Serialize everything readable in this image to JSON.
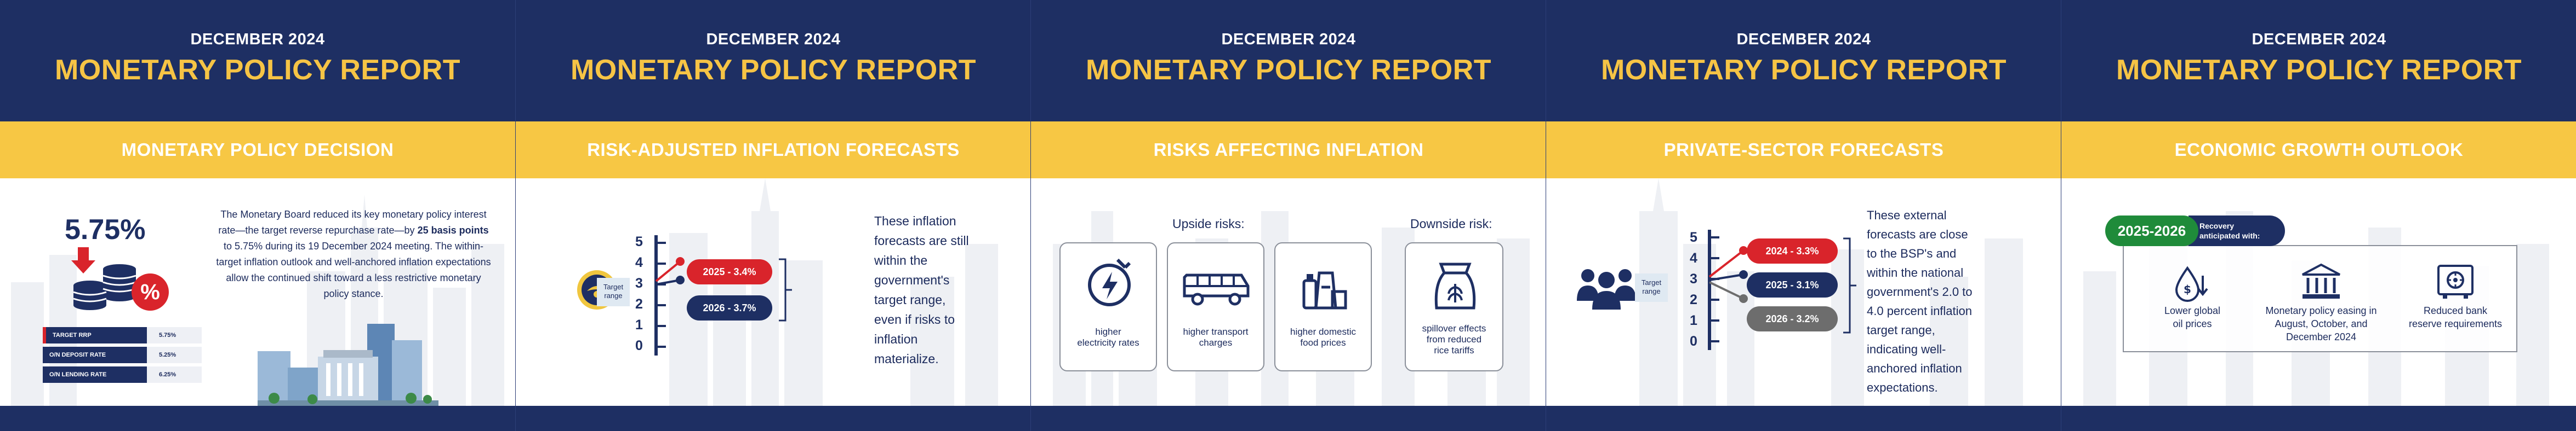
{
  "header": {
    "date": "DECEMBER 2024",
    "title": "MONETARY POLICY REPORT"
  },
  "colors": {
    "navy": "#1e2f63",
    "yellow": "#f7c744",
    "gold_text": "#f6c445",
    "red": "#d9242b",
    "green": "#1f8b3a",
    "gray": "#6d6d6d"
  },
  "panels": {
    "decision": {
      "heading": "MONETARY POLICY DECISION",
      "rate": "5.75%",
      "body_1": "The Monetary Board reduced its key monetary policy interest rate—the target reverse repurchase rate—by ",
      "body_bold": "25 basis points",
      "body_2": " to 5.75% during its 19 December 2024 meeting. The within-target inflation outlook and well-anchored inflation expectations allow the continued shift toward a less restrictive monetary policy stance.",
      "percent_icon": "%",
      "rates": [
        {
          "label": "TARGET RRP",
          "value": "5.75%"
        },
        {
          "label": "O/N DEPOSIT RATE",
          "value": "5.25%"
        },
        {
          "label": "O/N LENDING RATE",
          "value": "6.25%"
        }
      ]
    },
    "forecasts": {
      "heading": "RISK-ADJUSTED INFLATION FORECASTS",
      "scale": [
        "5",
        "4",
        "3",
        "2",
        "1",
        "0"
      ],
      "target_label": "Target range",
      "pills": [
        "2025 - 3.4%",
        "2026 - 3.7%"
      ],
      "side_text": [
        "These inflation",
        "forecasts are still",
        "within the",
        "government's",
        "target range,",
        "even if risks to",
        "inflation",
        "materialize."
      ]
    },
    "risks": {
      "heading": "RISKS AFFECTING INFLATION",
      "upside_label": "Upside risks:",
      "downside_label": "Downside risk:",
      "upside": [
        {
          "icon": "electricity-icon",
          "caption": [
            "higher",
            "electricity rates"
          ]
        },
        {
          "icon": "jeepney-icon",
          "caption": [
            "higher transport",
            "charges"
          ]
        },
        {
          "icon": "groceries-icon",
          "caption": [
            "higher domestic",
            "food prices"
          ]
        }
      ],
      "downside": [
        {
          "icon": "rice-sack-icon",
          "caption": [
            "spillover effects",
            "from reduced",
            "rice tariffs"
          ]
        }
      ]
    },
    "private": {
      "heading": "PRIVATE-SECTOR FORECASTS",
      "scale": [
        "5",
        "4",
        "3",
        "2",
        "1",
        "0"
      ],
      "target_label": "Target range",
      "pills": [
        "2024 - 3.3%",
        "2025 - 3.1%",
        "2026 - 3.2%"
      ],
      "side_text": [
        "These external",
        "forecasts are close",
        "to the BSP's and",
        "within the national",
        "government's 2.0 to",
        "4.0 percent inflation",
        "target range,",
        "indicating well-",
        "anchored inflation",
        "expectations."
      ]
    },
    "growth": {
      "heading": "ECONOMIC GROWTH OUTLOOK",
      "years": "2025-2026",
      "recovery_label": [
        "Recovery",
        "anticipated with:"
      ],
      "drivers": [
        {
          "icon": "oil-price-icon",
          "caption": [
            "Lower global",
            "oil prices"
          ]
        },
        {
          "icon": "bank-building-icon",
          "caption": [
            "Monetary policy easing in",
            "August, October, and",
            "December 2024"
          ]
        },
        {
          "icon": "vault-icon",
          "caption": [
            "Reduced bank",
            "reserve requirements"
          ]
        }
      ]
    }
  }
}
